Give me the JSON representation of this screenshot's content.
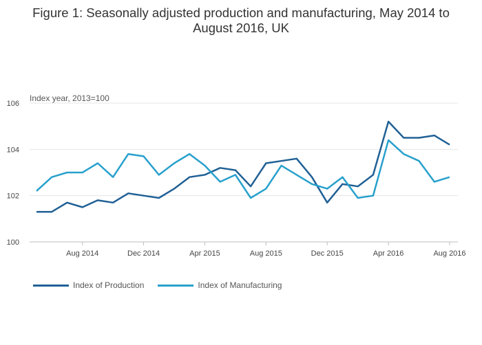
{
  "chart_data": {
    "type": "line",
    "title_line1": "Figure 1: Seasonally adjusted production and manufacturing, May 2014 to",
    "title_line2": "August 2016, UK",
    "ylabel": "Index year, 2013=100",
    "ylim": [
      100,
      106
    ],
    "yticks": [
      "100",
      "102",
      "104",
      "106"
    ],
    "x": [
      "May 2014",
      "Jun 2014",
      "Jul 2014",
      "Aug 2014",
      "Sep 2014",
      "Oct 2014",
      "Nov 2014",
      "Dec 2014",
      "Jan 2015",
      "Feb 2015",
      "Mar 2015",
      "Apr 2015",
      "May 2015",
      "Jun 2015",
      "Jul 2015",
      "Aug 2015",
      "Sep 2015",
      "Oct 2015",
      "Nov 2015",
      "Dec 2015",
      "Jan 2016",
      "Feb 2016",
      "Mar 2016",
      "Apr 2016",
      "May 2016",
      "Jun 2016",
      "Jul 2016",
      "Aug 2016"
    ],
    "xticks": [
      {
        "label": "Aug 2014",
        "index": 3
      },
      {
        "label": "Dec 2014",
        "index": 7
      },
      {
        "label": "Apr 2015",
        "index": 11
      },
      {
        "label": "Aug 2015",
        "index": 15
      },
      {
        "label": "Dec 2015",
        "index": 19
      },
      {
        "label": "Apr 2016",
        "index": 23
      },
      {
        "label": "Aug 2016",
        "index": 27
      }
    ],
    "series": [
      {
        "name": "Index of Production",
        "color": "#206095",
        "values": [
          101.3,
          101.3,
          101.7,
          101.5,
          101.8,
          101.7,
          102.1,
          102.0,
          101.9,
          102.3,
          102.8,
          102.9,
          103.2,
          103.1,
          102.4,
          103.4,
          103.5,
          103.6,
          102.8,
          101.7,
          102.5,
          102.4,
          102.9,
          105.2,
          104.5,
          104.5,
          104.6,
          104.2
        ]
      },
      {
        "name": "Index of Manufacturing",
        "color": "#27a0cc",
        "values": [
          102.2,
          102.8,
          103.0,
          103.0,
          103.4,
          102.8,
          103.8,
          103.7,
          102.9,
          103.4,
          103.8,
          103.3,
          102.6,
          102.9,
          101.9,
          102.3,
          103.3,
          102.9,
          102.5,
          102.3,
          102.8,
          101.9,
          102.0,
          104.4,
          103.8,
          103.5,
          102.6,
          102.8
        ]
      }
    ],
    "grid": true,
    "legend_position": "bottom-left"
  }
}
